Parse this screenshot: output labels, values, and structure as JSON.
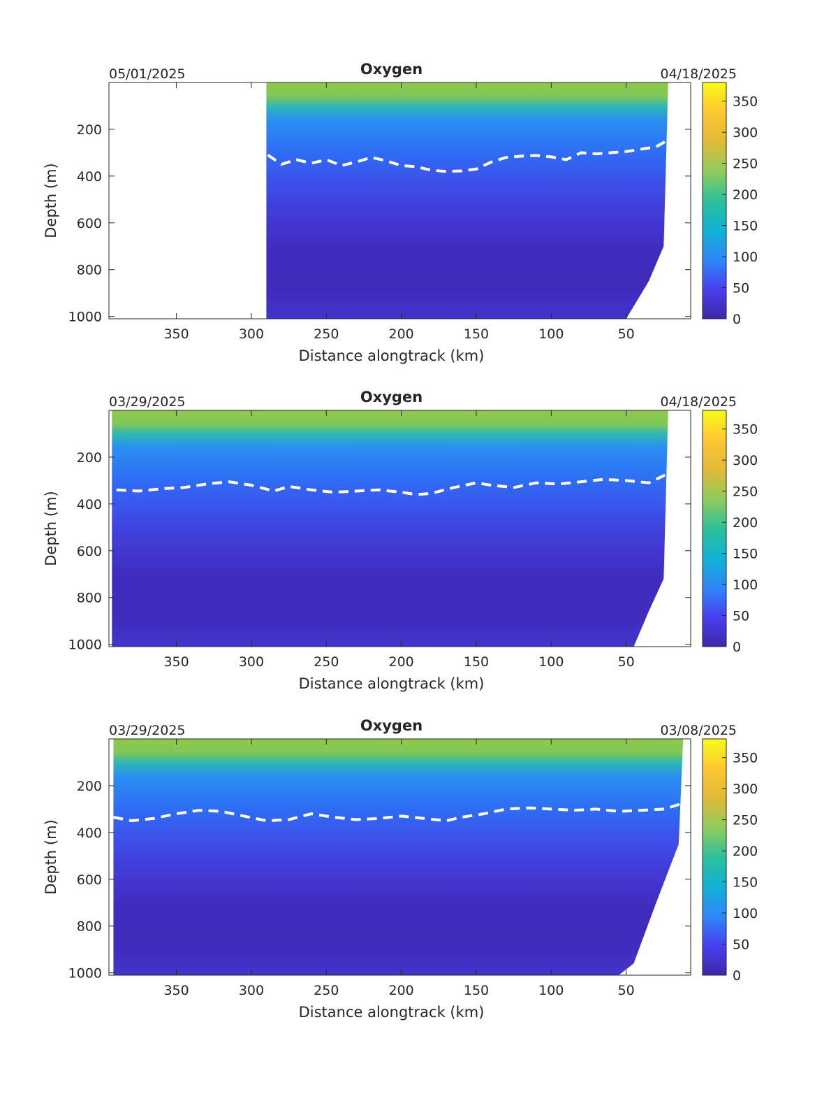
{
  "chart_data": [
    {
      "type": "heatmap",
      "title": "Oxygen",
      "start_date": "05/01/2025",
      "end_date": "04/18/2025",
      "xlabel": "Distance alongtrack (km)",
      "ylabel": "Depth (m)",
      "xlim": [
        395,
        7
      ],
      "ylim": [
        1010,
        0
      ],
      "xticks": [
        350,
        300,
        250,
        200,
        150,
        100,
        50
      ],
      "yticks": [
        200,
        400,
        600,
        800,
        1000
      ],
      "clim": [
        0,
        380
      ],
      "colorbar_ticks": [
        0,
        50,
        100,
        150,
        200,
        250,
        300,
        350
      ],
      "colormap": "parula",
      "data_x_extent": [
        290,
        22
      ],
      "bottom_profile": [
        [
          290,
          1010
        ],
        [
          50,
          1010
        ],
        [
          35,
          850
        ],
        [
          25,
          700
        ],
        [
          22,
          0
        ]
      ],
      "contour_depth": [
        [
          289,
          310
        ],
        [
          280,
          350
        ],
        [
          270,
          330
        ],
        [
          260,
          345
        ],
        [
          250,
          330
        ],
        [
          240,
          355
        ],
        [
          230,
          340
        ],
        [
          220,
          320
        ],
        [
          210,
          335
        ],
        [
          200,
          355
        ],
        [
          190,
          360
        ],
        [
          180,
          375
        ],
        [
          170,
          380
        ],
        [
          160,
          378
        ],
        [
          150,
          370
        ],
        [
          140,
          340
        ],
        [
          130,
          320
        ],
        [
          120,
          315
        ],
        [
          110,
          312
        ],
        [
          100,
          318
        ],
        [
          90,
          330
        ],
        [
          80,
          300
        ],
        [
          70,
          305
        ],
        [
          60,
          300
        ],
        [
          50,
          295
        ],
        [
          40,
          285
        ],
        [
          30,
          275
        ],
        [
          22,
          245
        ]
      ]
    },
    {
      "type": "heatmap",
      "title": "Oxygen",
      "start_date": "03/29/2025",
      "end_date": "04/18/2025",
      "xlabel": "Distance alongtrack (km)",
      "ylabel": "Depth (m)",
      "xlim": [
        395,
        7
      ],
      "ylim": [
        1010,
        0
      ],
      "xticks": [
        350,
        300,
        250,
        200,
        150,
        100,
        50
      ],
      "yticks": [
        200,
        400,
        600,
        800,
        1000
      ],
      "clim": [
        0,
        380
      ],
      "colorbar_ticks": [
        0,
        50,
        100,
        150,
        200,
        250,
        300,
        350
      ],
      "colormap": "parula",
      "data_x_extent": [
        393,
        22
      ],
      "bottom_profile": [
        [
          393,
          1010
        ],
        [
          45,
          1010
        ],
        [
          35,
          860
        ],
        [
          25,
          720
        ],
        [
          22,
          0
        ]
      ],
      "contour_depth": [
        [
          390,
          340
        ],
        [
          375,
          345
        ],
        [
          360,
          335
        ],
        [
          345,
          330
        ],
        [
          330,
          315
        ],
        [
          315,
          305
        ],
        [
          300,
          320
        ],
        [
          285,
          345
        ],
        [
          275,
          325
        ],
        [
          260,
          340
        ],
        [
          245,
          350
        ],
        [
          230,
          345
        ],
        [
          215,
          340
        ],
        [
          200,
          350
        ],
        [
          190,
          360
        ],
        [
          180,
          355
        ],
        [
          165,
          330
        ],
        [
          150,
          310
        ],
        [
          140,
          320
        ],
        [
          125,
          330
        ],
        [
          110,
          310
        ],
        [
          95,
          315
        ],
        [
          80,
          305
        ],
        [
          65,
          295
        ],
        [
          50,
          300
        ],
        [
          35,
          310
        ],
        [
          22,
          270
        ]
      ]
    },
    {
      "type": "heatmap",
      "title": "Oxygen",
      "start_date": "03/29/2025",
      "end_date": "03/08/2025",
      "xlabel": "Distance alongtrack (km)",
      "ylabel": "Depth (m)",
      "xlim": [
        395,
        7
      ],
      "ylim": [
        1010,
        0
      ],
      "xticks": [
        350,
        300,
        250,
        200,
        150,
        100,
        50
      ],
      "yticks": [
        200,
        400,
        600,
        800,
        1000
      ],
      "clim": [
        0,
        380
      ],
      "colorbar_ticks": [
        0,
        50,
        100,
        150,
        200,
        250,
        300,
        350
      ],
      "colormap": "parula",
      "data_x_extent": [
        392,
        12
      ],
      "bottom_profile": [
        [
          392,
          1010
        ],
        [
          55,
          1010
        ],
        [
          45,
          960
        ],
        [
          30,
          700
        ],
        [
          15,
          450
        ],
        [
          12,
          0
        ]
      ],
      "contour_depth": [
        [
          392,
          335
        ],
        [
          380,
          350
        ],
        [
          365,
          340
        ],
        [
          350,
          320
        ],
        [
          335,
          305
        ],
        [
          320,
          310
        ],
        [
          305,
          330
        ],
        [
          290,
          350
        ],
        [
          275,
          345
        ],
        [
          260,
          320
        ],
        [
          245,
          335
        ],
        [
          230,
          345
        ],
        [
          215,
          340
        ],
        [
          200,
          330
        ],
        [
          185,
          340
        ],
        [
          170,
          350
        ],
        [
          160,
          335
        ],
        [
          145,
          320
        ],
        [
          130,
          300
        ],
        [
          115,
          295
        ],
        [
          100,
          300
        ],
        [
          85,
          305
        ],
        [
          70,
          300
        ],
        [
          55,
          310
        ],
        [
          40,
          305
        ],
        [
          25,
          300
        ],
        [
          12,
          275
        ]
      ]
    }
  ]
}
